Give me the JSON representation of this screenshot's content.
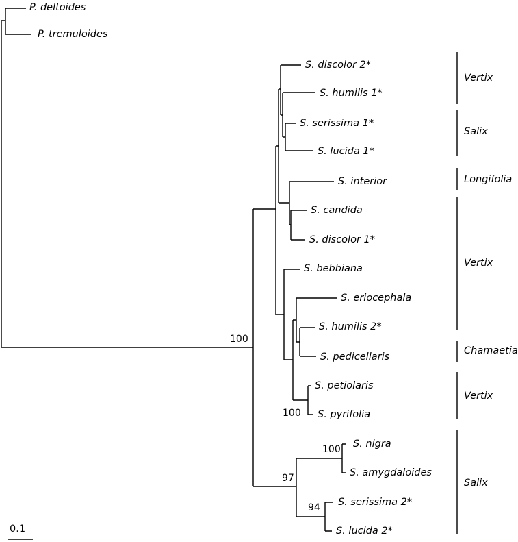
{
  "taxa": [
    "P. deltoides",
    "P. tremuloides",
    "S. discolor 2*",
    "S. humilis 1*",
    "S. serissima 1*",
    "S. lucida 1*",
    "S. interior",
    "S. candida",
    "S. discolor 1*",
    "S. bebbiana",
    "S. eriocephala",
    "S. humilis 2*",
    "S. pedicellaris",
    "S. petiolaris",
    "S. pyrifolia",
    "S. nigra",
    "S. amygdaloides",
    "S. serissima 2*",
    "S. lucida 2*"
  ],
  "clades": [
    "Vertix",
    "Salix",
    "Longifolia",
    "Vertix",
    "Chamaetia",
    "Vertix",
    "Salix"
  ],
  "support": [
    100,
    100,
    100,
    97,
    94
  ],
  "scale_bar": "0.1"
}
